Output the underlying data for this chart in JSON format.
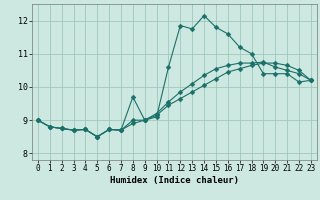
{
  "xlabel": "Humidex (Indice chaleur)",
  "background_color": "#cce8e0",
  "grid_color": "#a0c8be",
  "line_color": "#1a7068",
  "xlim": [
    -0.5,
    23.5
  ],
  "ylim": [
    7.8,
    12.5
  ],
  "xticks": [
    0,
    1,
    2,
    3,
    4,
    5,
    6,
    7,
    8,
    9,
    10,
    11,
    12,
    13,
    14,
    15,
    16,
    17,
    18,
    19,
    20,
    21,
    22,
    23
  ],
  "yticks": [
    8,
    9,
    10,
    11,
    12
  ],
  "line1_x": [
    0,
    1,
    2,
    3,
    4,
    5,
    6,
    7,
    8,
    9,
    10,
    11,
    12,
    13,
    14,
    15,
    16,
    17,
    18,
    19,
    20,
    21,
    22,
    23
  ],
  "line1_y": [
    9.0,
    8.8,
    8.75,
    8.7,
    8.72,
    8.5,
    8.72,
    8.7,
    9.7,
    9.0,
    9.1,
    10.6,
    11.85,
    11.75,
    12.15,
    11.8,
    11.6,
    11.2,
    11.0,
    10.4,
    10.4,
    10.4,
    10.15,
    10.2
  ],
  "line2_x": [
    0,
    1,
    2,
    3,
    4,
    5,
    6,
    7,
    8,
    9,
    10,
    11,
    12,
    13,
    14,
    15,
    16,
    17,
    18,
    19,
    20,
    21,
    22,
    23
  ],
  "line2_y": [
    9.0,
    8.8,
    8.75,
    8.7,
    8.72,
    8.5,
    8.72,
    8.7,
    9.0,
    9.0,
    9.2,
    9.55,
    9.85,
    10.1,
    10.35,
    10.55,
    10.65,
    10.72,
    10.72,
    10.75,
    10.6,
    10.5,
    10.4,
    10.2
  ],
  "line3_x": [
    0,
    1,
    2,
    3,
    4,
    5,
    6,
    7,
    8,
    9,
    10,
    11,
    12,
    13,
    14,
    15,
    16,
    17,
    18,
    19,
    20,
    21,
    22,
    23
  ],
  "line3_y": [
    9.0,
    8.8,
    8.75,
    8.7,
    8.72,
    8.5,
    8.72,
    8.7,
    8.9,
    9.0,
    9.15,
    9.45,
    9.65,
    9.85,
    10.05,
    10.25,
    10.45,
    10.55,
    10.65,
    10.72,
    10.72,
    10.65,
    10.5,
    10.2
  ],
  "marker_size": 2.5,
  "linewidth": 0.8,
  "tick_fontsize": 5.5,
  "xlabel_fontsize": 6.5
}
